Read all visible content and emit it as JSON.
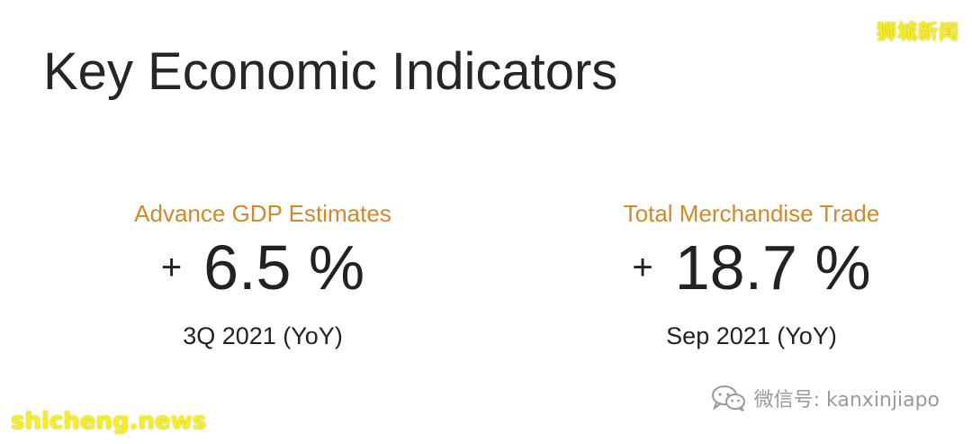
{
  "watermark_top": "狮城新闻",
  "title": "Key Economic Indicators",
  "indicators": [
    {
      "label": "Advance GDP Estimates",
      "sign": "+",
      "value": "6.5 %",
      "period": "3Q 2021 (YoY)"
    },
    {
      "label": "Total Merchandise Trade",
      "sign": "+",
      "value": "18.7 %",
      "period": "Sep 2021 (YoY)"
    }
  ],
  "wechat": {
    "icon": "wechat-icon",
    "text": "微信号: kanxinjiapo"
  },
  "watermark_bottom": "shicheng.news",
  "colors": {
    "label_accent": "#d4882a",
    "watermark": "#f7ef1b",
    "text": "#222222"
  }
}
